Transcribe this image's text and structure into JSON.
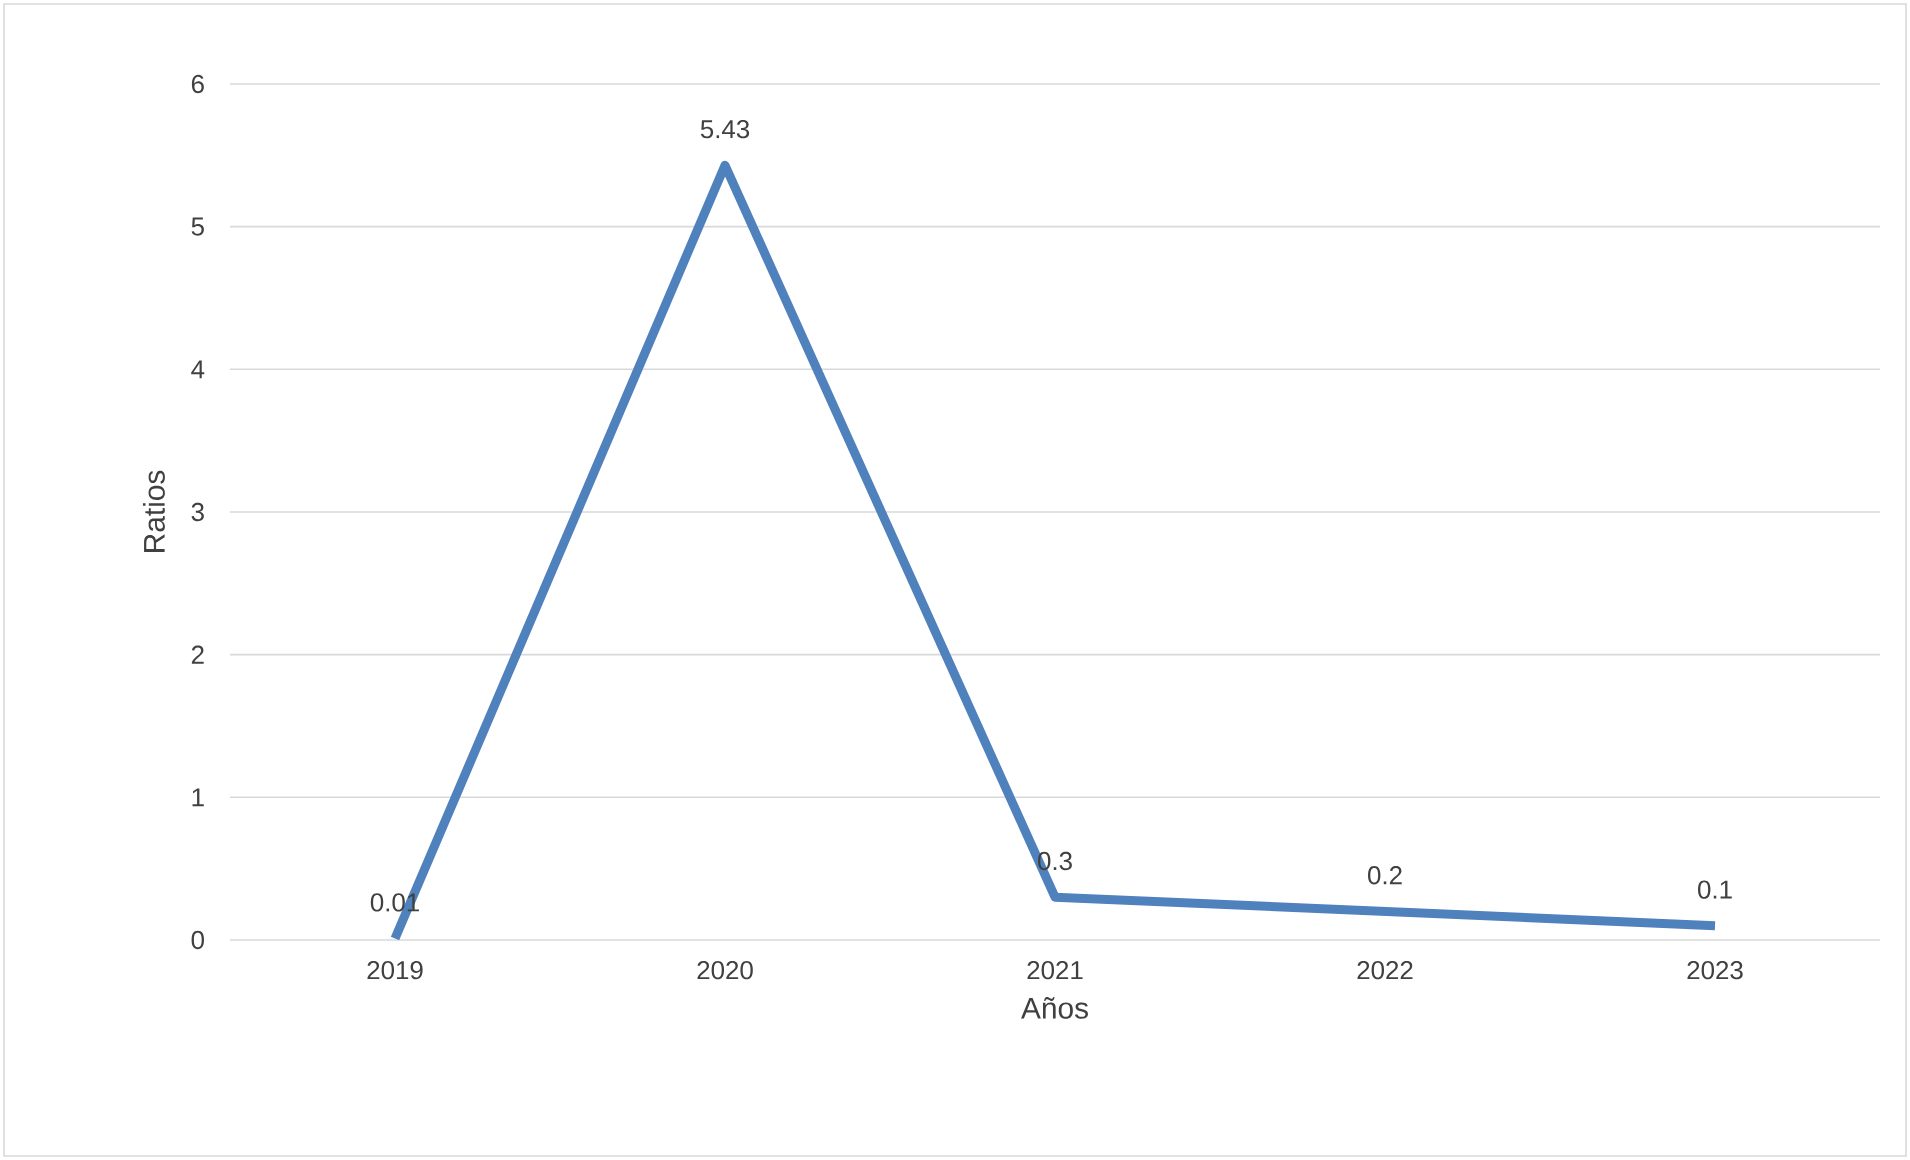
{
  "chart_data": {
    "type": "line",
    "xlabel": "Años",
    "ylabel": "Ratios",
    "categories": [
      "2019",
      "2020",
      "2021",
      "2022",
      "2023"
    ],
    "values": [
      0.01,
      5.43,
      0.3,
      0.2,
      0.1
    ],
    "color": "#4f81bd",
    "ylim": [
      0,
      6
    ],
    "yticks": [
      0,
      1,
      2,
      3,
      4,
      5,
      6
    ],
    "grid": "y",
    "data_labels": true,
    "marker": "none",
    "line_style": "solid"
  }
}
